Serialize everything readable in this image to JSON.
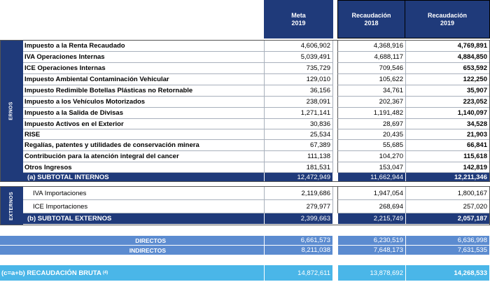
{
  "header": {
    "meta": [
      "Meta",
      "2019"
    ],
    "rec2018": [
      "Recaudación",
      "2018"
    ],
    "rec2019": [
      "Recaudación",
      "2019"
    ]
  },
  "sections": {
    "internos_label": "ERNOS",
    "externos_label": "EXTERNOS"
  },
  "internos": [
    {
      "label": "Impuesto a la Renta Recaudado",
      "meta": "4,606,902",
      "r2018": "4,368,916",
      "r2019": "4,769,891"
    },
    {
      "label": "IVA Operaciones Internas",
      "meta": "5,039,491",
      "r2018": "4,688,117",
      "r2019": "4,884,850"
    },
    {
      "label": "ICE Operaciones Internas",
      "meta": "735,729",
      "r2018": "709,546",
      "r2019": "653,592"
    },
    {
      "label": "Impuesto Ambiental Contaminación  Vehicular",
      "meta": "129,010",
      "r2018": "105,622",
      "r2019": "122,250"
    },
    {
      "label": "Impuesto Redimible Botellas Plásticas no Retornable",
      "meta": "36,156",
      "r2018": "34,761",
      "r2019": "35,907"
    },
    {
      "label": "Impuesto a los Vehículos Motorizados",
      "meta": "238,091",
      "r2018": "202,367",
      "r2019": "223,052"
    },
    {
      "label": "Impuesto a la Salida de Divisas",
      "meta": "1,271,141",
      "r2018": "1,191,482",
      "r2019": "1,140,097"
    },
    {
      "label": "Impuesto Activos en el Exterior",
      "meta": "30,836",
      "r2018": "28,697",
      "r2019": "34,528"
    },
    {
      "label": "RISE",
      "meta": "25,534",
      "r2018": "20,435",
      "r2019": "21,903"
    },
    {
      "label": "Regalías, patentes y utilidades de conservación minera",
      "meta": "67,389",
      "r2018": "55,685",
      "r2019": "66,841"
    },
    {
      "label": "Contribución para la atención integral del cancer",
      "meta": "111,138",
      "r2018": "104,270",
      "r2019": "115,618"
    },
    {
      "label": "Otros Ingresos",
      "meta": "181,531",
      "r2018": "153,047",
      "r2019": "142,819"
    }
  ],
  "subtotal_internos": {
    "label": "(a) SUBTOTAL INTERNOS",
    "meta": "12,472,949",
    "r2018": "11,662,944",
    "r2019": "12,211,346"
  },
  "externos": [
    {
      "label": "IVA Importaciones",
      "meta": "2,119,686",
      "r2018": "1,947,054",
      "r2019": "1,800,167"
    },
    {
      "label": "ICE Importaciones",
      "meta": "279,977",
      "r2018": "268,694",
      "r2019": "257,020"
    }
  ],
  "subtotal_externos": {
    "label": "(b) SUBTOTAL EXTERNOS",
    "meta": "2,399,663",
    "r2018": "2,215,749",
    "r2019": "2,057,187"
  },
  "directos": {
    "label": "DIRECTOS",
    "meta": "6,661,573",
    "r2018": "6,230,519",
    "r2019": "6,636,998"
  },
  "indirectos": {
    "label": "INDIRECTOS",
    "meta": "8,211,038",
    "r2018": "7,648,173",
    "r2019": "7,631,535"
  },
  "bruta": {
    "label": "(c=a+b) RECAUDACIÓN BRUTA",
    "note": "(4)",
    "meta": "14,872,611",
    "r2018": "13,878,692",
    "r2019": "14,268,533"
  },
  "colors": {
    "navy": "#1f3a7a",
    "band_blue": "#5b8bd0",
    "cyan": "#4ab6e8"
  }
}
